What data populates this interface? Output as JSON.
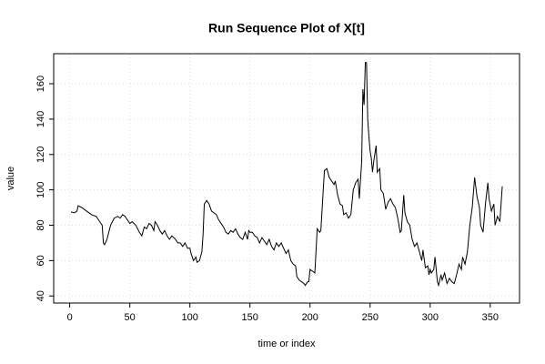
{
  "chart_data": {
    "type": "line",
    "title": "Run Sequence Plot of X[t]",
    "x_label": "time or index",
    "y_label": "value",
    "x": [
      1,
      4,
      6,
      7,
      10,
      14,
      18,
      22,
      25,
      27,
      28,
      29,
      31,
      34,
      37,
      40,
      42,
      44,
      46,
      49,
      50,
      52,
      55,
      58,
      60,
      62,
      64,
      66,
      68,
      70,
      71,
      73,
      75,
      77,
      79,
      81,
      83,
      85,
      88,
      90,
      92,
      94,
      96,
      98,
      100,
      101,
      103,
      105,
      106,
      108,
      110,
      111,
      112,
      114,
      116,
      118,
      120,
      122,
      124,
      126,
      128,
      130,
      132,
      134,
      136,
      138,
      140,
      142,
      144,
      146,
      148,
      149,
      150,
      152,
      154,
      156,
      158,
      160,
      162,
      164,
      166,
      168,
      170,
      172,
      174,
      176,
      178,
      180,
      182,
      184,
      186,
      188,
      189,
      191,
      193,
      195,
      196,
      198,
      199,
      200,
      202,
      204,
      206,
      208,
      209,
      211,
      212,
      214,
      216,
      218,
      220,
      221,
      223,
      225,
      227,
      228,
      230,
      232,
      234,
      236,
      238,
      240,
      241,
      243,
      244,
      245,
      246,
      247,
      248,
      249,
      250,
      251,
      252,
      253,
      255,
      256,
      258,
      259,
      261,
      263,
      265,
      267,
      269,
      271,
      273,
      275,
      276,
      278,
      279,
      281,
      283,
      285,
      287,
      289,
      291,
      293,
      294,
      296,
      298,
      299,
      300,
      301,
      303,
      304,
      306,
      307,
      309,
      310,
      312,
      314,
      316,
      318,
      320,
      322,
      324,
      326,
      327,
      329,
      331,
      333,
      335,
      337,
      339,
      341,
      342,
      344,
      346,
      348,
      349,
      351,
      353,
      354,
      356,
      358,
      360
    ],
    "values": [
      87.5,
      87,
      88,
      91,
      90,
      88,
      86,
      85,
      82,
      80,
      70,
      69,
      72,
      80,
      84,
      85,
      84,
      86,
      85,
      82,
      81,
      82,
      80,
      76,
      74,
      79,
      78,
      81,
      80,
      77,
      82,
      80,
      77,
      75,
      77,
      74,
      72,
      74,
      72,
      70,
      70,
      68,
      70,
      67,
      67,
      64,
      60,
      62,
      59,
      60,
      65,
      75,
      92,
      94,
      92,
      88,
      87,
      86,
      83,
      81,
      79,
      76,
      75,
      77,
      76,
      78,
      75,
      73,
      72,
      76,
      72,
      77,
      76,
      76,
      74,
      73,
      70,
      73,
      71,
      69,
      72,
      68,
      66,
      70,
      68,
      70,
      67,
      64,
      66,
      60,
      58,
      57,
      51,
      49,
      48,
      47,
      46,
      48,
      48,
      55,
      54,
      53,
      78,
      76,
      77,
      100,
      111,
      112,
      107,
      105,
      103,
      105,
      97,
      92,
      91,
      86,
      87,
      84,
      86,
      100,
      104,
      106,
      95,
      116,
      157,
      148,
      172,
      172,
      140,
      130,
      122,
      118,
      110,
      116,
      125,
      110,
      112,
      100,
      98,
      89,
      93,
      95,
      92,
      90,
      84,
      76,
      77,
      97,
      87,
      82,
      80,
      72,
      68,
      70,
      65,
      60,
      66,
      56,
      57,
      52,
      55,
      53,
      55,
      62,
      48,
      46,
      52,
      49,
      53,
      47,
      50,
      48,
      47,
      52,
      58,
      55,
      62,
      58,
      65,
      80,
      90,
      107,
      96,
      90,
      80,
      76,
      92,
      104,
      95,
      88,
      92,
      80,
      85,
      82,
      102
    ],
    "color": "#000000",
    "xlim": [
      -13.36,
      374.36
    ],
    "xticks": [
      0,
      50,
      100,
      150,
      200,
      250,
      300,
      350
    ],
    "ylim": [
      36,
      177
    ],
    "yticks": [
      40,
      60,
      80,
      100,
      120,
      140,
      160
    ],
    "grid": true
  }
}
